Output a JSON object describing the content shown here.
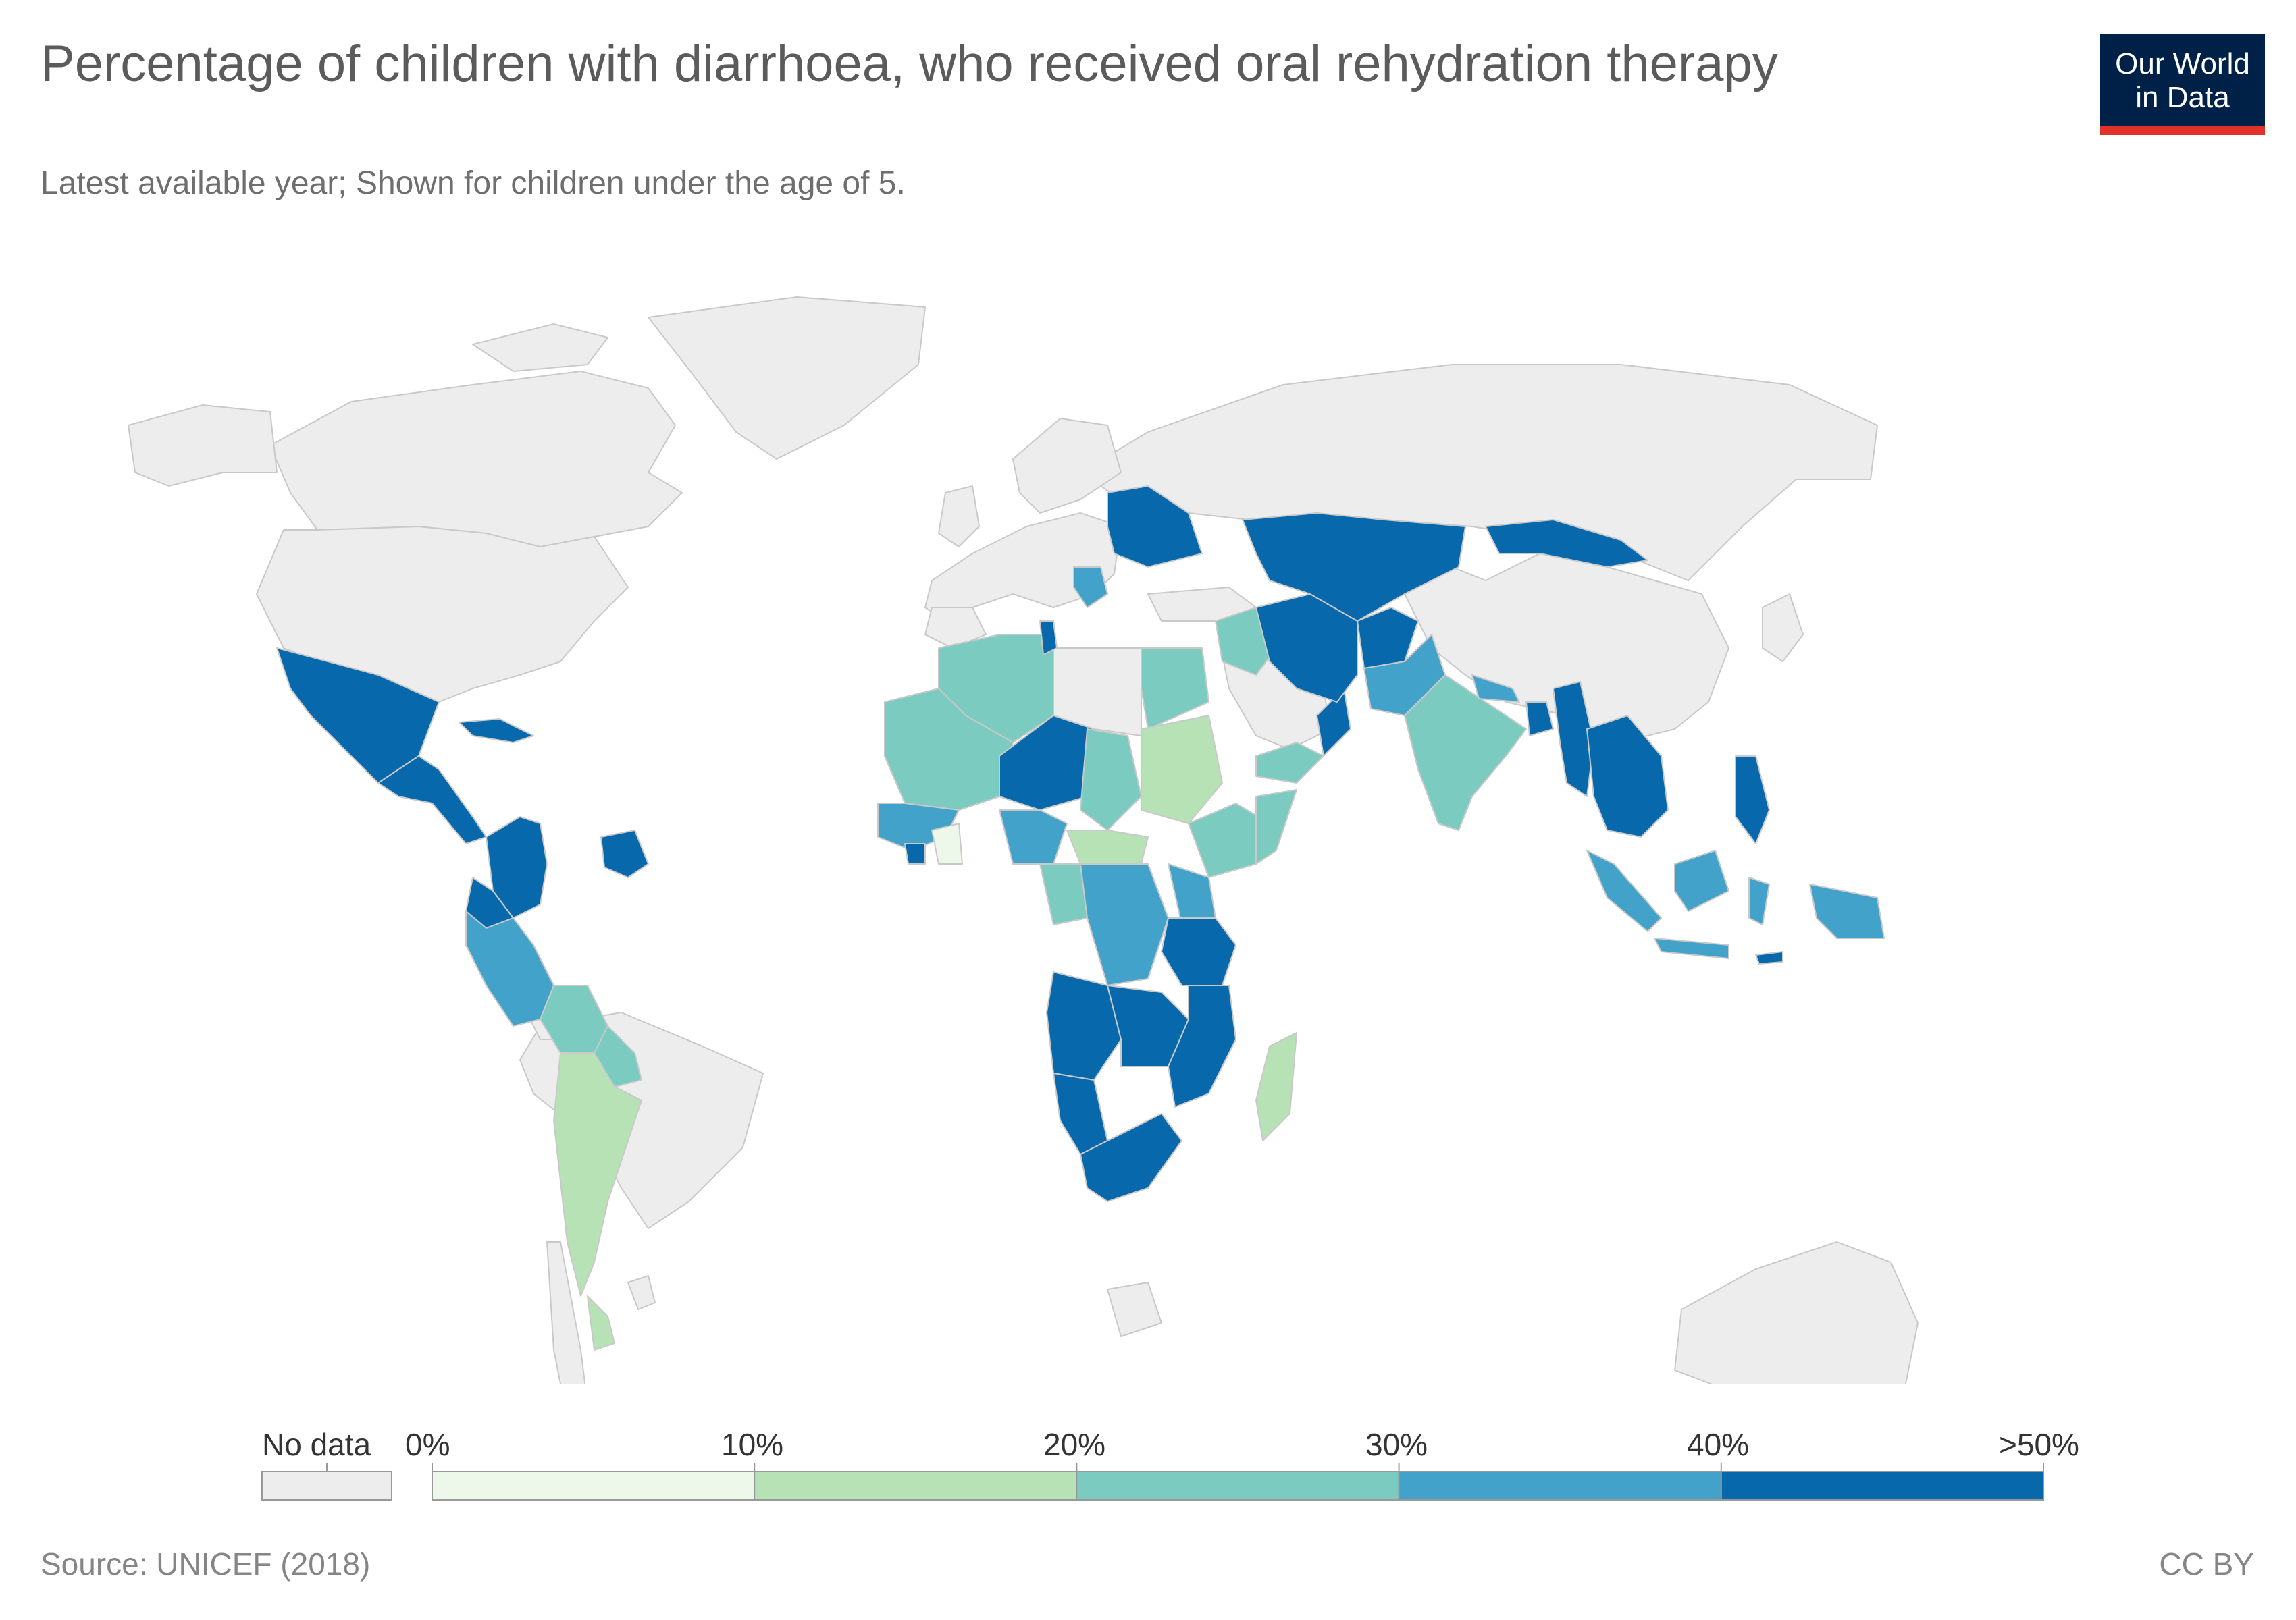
{
  "header": {
    "title": "Percentage of children with diarrhoea, who received oral rehydration therapy",
    "subtitle": "Latest available year; Shown for children under the age of 5."
  },
  "logo": {
    "line1": "Our World",
    "line2": "in Data"
  },
  "legend": {
    "no_data_label": "No data",
    "tick_labels": [
      "0%",
      "10%",
      "20%",
      "30%",
      "40%",
      ">50%"
    ],
    "bins": [
      {
        "from": 0,
        "to": 10,
        "color": "#eef8ea"
      },
      {
        "from": 10,
        "to": 20,
        "color": "#b7e2b5"
      },
      {
        "from": 20,
        "to": 30,
        "color": "#7bcbc0"
      },
      {
        "from": 30,
        "to": 40,
        "color": "#43a2ca"
      },
      {
        "from": 40,
        "to": 50,
        "color": "#0868ac"
      }
    ],
    "no_data_color": "#ededed"
  },
  "footer": {
    "source": "Source: UNICEF (2018)",
    "license": "CC BY"
  },
  "chart_data": {
    "type": "choropleth",
    "unit": "%",
    "color_bins": [
      "0-10",
      "10-20",
      "20-30",
      "30-40",
      ">40"
    ],
    "regions": [
      {
        "name": "Mexico",
        "bin": ">40"
      },
      {
        "name": "Guatemala",
        "bin": ">40"
      },
      {
        "name": "Honduras",
        "bin": ">40"
      },
      {
        "name": "Nicaragua",
        "bin": ">40"
      },
      {
        "name": "Cuba",
        "bin": ">40"
      },
      {
        "name": "Colombia",
        "bin": ">40"
      },
      {
        "name": "Guyana",
        "bin": ">40"
      },
      {
        "name": "Suriname",
        "bin": ">40"
      },
      {
        "name": "Ecuador",
        "bin": ">40"
      },
      {
        "name": "Peru",
        "bin": "30-40"
      },
      {
        "name": "Bolivia",
        "bin": "20-30"
      },
      {
        "name": "Paraguay",
        "bin": "20-30"
      },
      {
        "name": "Argentina",
        "bin": "10-20"
      },
      {
        "name": "Algeria",
        "bin": "20-30"
      },
      {
        "name": "Tunisia",
        "bin": ">40"
      },
      {
        "name": "Egypt",
        "bin": "20-30"
      },
      {
        "name": "Mali",
        "bin": "20-30"
      },
      {
        "name": "Mauritania",
        "bin": "20-30"
      },
      {
        "name": "Niger",
        "bin": ">40"
      },
      {
        "name": "Chad",
        "bin": "20-30"
      },
      {
        "name": "Sudan",
        "bin": "10-20"
      },
      {
        "name": "Nigeria",
        "bin": "30-40"
      },
      {
        "name": "Ghana",
        "bin": "0-10"
      },
      {
        "name": "Sierra Leone",
        "bin": ">40"
      },
      {
        "name": "Central African Republic",
        "bin": "10-20"
      },
      {
        "name": "South Sudan",
        "bin": "10-20"
      },
      {
        "name": "Ethiopia",
        "bin": "20-30"
      },
      {
        "name": "Somalia",
        "bin": "20-30"
      },
      {
        "name": "DR Congo",
        "bin": "30-40"
      },
      {
        "name": "Congo",
        "bin": "20-30"
      },
      {
        "name": "Gabon",
        "bin": "20-30"
      },
      {
        "name": "Kenya",
        "bin": "30-40"
      },
      {
        "name": "Tanzania",
        "bin": ">40"
      },
      {
        "name": "Angola",
        "bin": ">40"
      },
      {
        "name": "Zambia",
        "bin": ">40"
      },
      {
        "name": "Zimbabwe",
        "bin": ">40"
      },
      {
        "name": "Mozambique",
        "bin": ">40"
      },
      {
        "name": "Namibia",
        "bin": ">40"
      },
      {
        "name": "South Africa",
        "bin": ">40"
      },
      {
        "name": "Madagascar",
        "bin": "10-20"
      },
      {
        "name": "Yemen",
        "bin": "20-30"
      },
      {
        "name": "Oman",
        "bin": ">40"
      },
      {
        "name": "Iraq",
        "bin": "20-30"
      },
      {
        "name": "Iran",
        "bin": ">40"
      },
      {
        "name": "Afghanistan",
        "bin": ">40"
      },
      {
        "name": "Pakistan",
        "bin": "30-40"
      },
      {
        "name": "Kazakhstan",
        "bin": ">40"
      },
      {
        "name": "Uzbekistan",
        "bin": ">40"
      },
      {
        "name": "Turkmenistan",
        "bin": ">40"
      },
      {
        "name": "Kyrgyzstan",
        "bin": ">40"
      },
      {
        "name": "Tajikistan",
        "bin": ">40"
      },
      {
        "name": "Mongolia",
        "bin": ">40"
      },
      {
        "name": "Ukraine",
        "bin": ">40"
      },
      {
        "name": "Belarus",
        "bin": ">40"
      },
      {
        "name": "Serbia",
        "bin": "30-40"
      },
      {
        "name": "India",
        "bin": "20-30"
      },
      {
        "name": "Nepal",
        "bin": "30-40"
      },
      {
        "name": "Bangladesh",
        "bin": ">40"
      },
      {
        "name": "Myanmar",
        "bin": ">40"
      },
      {
        "name": "Thailand",
        "bin": ">40"
      },
      {
        "name": "Laos",
        "bin": ">40"
      },
      {
        "name": "Cambodia",
        "bin": ">40"
      },
      {
        "name": "Vietnam",
        "bin": ">40"
      },
      {
        "name": "Philippines",
        "bin": ">40"
      },
      {
        "name": "Indonesia",
        "bin": "30-40"
      },
      {
        "name": "Papua New Guinea",
        "bin": "30-40"
      },
      {
        "name": "Timor-Leste",
        "bin": ">40"
      }
    ]
  }
}
